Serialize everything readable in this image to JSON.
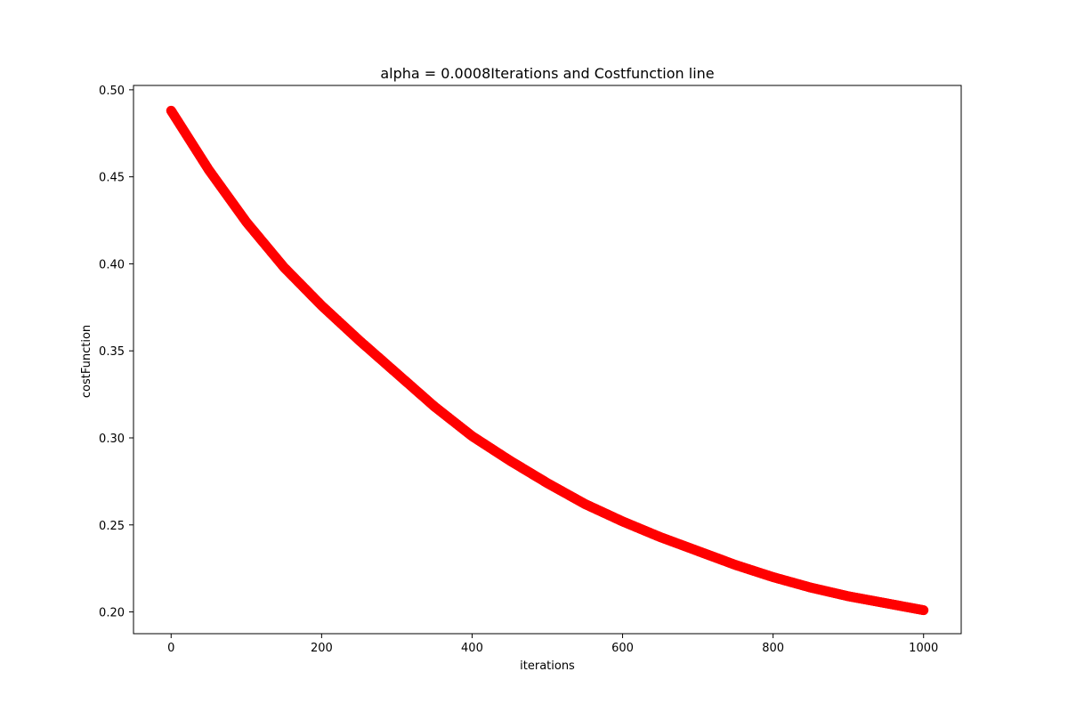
{
  "chart_data": {
    "type": "scatter",
    "title": "alpha = 0.0008Iterations and Costfunction line",
    "xlabel": "iterations",
    "ylabel": "costFunction",
    "xlim": [
      -50,
      1050
    ],
    "ylim": [
      0.1875,
      0.5025
    ],
    "xticks": [
      0,
      200,
      400,
      600,
      800,
      1000
    ],
    "yticks": [
      0.2,
      0.25,
      0.3,
      0.35,
      0.4,
      0.45,
      0.5
    ],
    "xtick_labels": [
      "0",
      "200",
      "400",
      "600",
      "800",
      "1000"
    ],
    "ytick_labels": [
      "0.20",
      "0.25",
      "0.30",
      "0.35",
      "0.40",
      "0.45",
      "0.50"
    ],
    "grid": false,
    "series": [
      {
        "name": "costFunction",
        "color": "#ff0000",
        "x": [
          0,
          50,
          100,
          150,
          200,
          250,
          300,
          350,
          400,
          450,
          500,
          550,
          600,
          650,
          700,
          750,
          800,
          850,
          900,
          950,
          1000
        ],
        "y": [
          0.488,
          0.454,
          0.424,
          0.398,
          0.376,
          0.356,
          0.337,
          0.318,
          0.301,
          0.287,
          0.274,
          0.262,
          0.252,
          0.243,
          0.235,
          0.227,
          0.22,
          0.214,
          0.209,
          0.205,
          0.201
        ]
      }
    ]
  }
}
